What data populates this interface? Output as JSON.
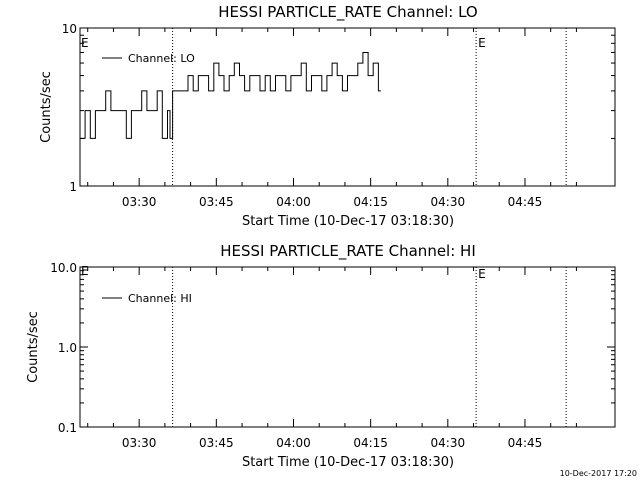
{
  "chart_data": [
    {
      "type": "line",
      "title": "HESSI PARTICLE_RATE Channel: LO",
      "xlabel": "Start Time (10-Dec-17 03:18:30)",
      "ylabel": "Counts/sec",
      "y_scale": "log",
      "ylim": [
        1,
        10
      ],
      "xlim": [
        "03:18:30",
        "05:02:30"
      ],
      "x_tick_labels": [
        "03:30",
        "03:45",
        "04:00",
        "04:15",
        "04:30",
        "04:45"
      ],
      "y_tick_labels": [
        "1",
        "10"
      ],
      "grid": false,
      "legend_position": "top-left",
      "event_markers": [
        {
          "time": "03:36:30",
          "label": ""
        },
        {
          "time": "04:35:30",
          "label": "E"
        },
        {
          "time": "04:53:00",
          "label": ""
        }
      ],
      "start_marker_label": "E",
      "series": [
        {
          "name": "Channel: LO",
          "x": [
            "03:18:30",
            "03:19:30",
            "03:20:30",
            "03:21:30",
            "03:22:30",
            "03:23:30",
            "03:24:30",
            "03:25:30",
            "03:26:30",
            "03:27:30",
            "03:28:30",
            "03:29:30",
            "03:30:30",
            "03:31:30",
            "03:32:30",
            "03:33:30",
            "03:34:30",
            "03:35:30",
            "03:36:00",
            "03:36:30",
            "03:37:30",
            "03:38:30",
            "03:39:30",
            "03:40:30",
            "03:41:30",
            "03:42:30",
            "03:43:30",
            "03:44:30",
            "03:45:30",
            "03:46:30",
            "03:47:30",
            "03:48:30",
            "03:49:30",
            "03:50:30",
            "03:51:30",
            "03:52:30",
            "03:53:30",
            "03:54:30",
            "03:55:30",
            "03:56:30",
            "03:57:30",
            "03:58:30",
            "03:59:30",
            "04:00:30",
            "04:01:30",
            "04:02:30",
            "04:03:30",
            "04:04:30",
            "04:05:30",
            "04:06:30",
            "04:07:30",
            "04:08:30",
            "04:09:30",
            "04:10:30",
            "04:11:30",
            "04:12:30",
            "04:13:30",
            "04:14:30",
            "04:15:30",
            "04:16:30"
          ],
          "values": [
            2,
            3,
            2,
            3,
            3,
            4,
            3,
            3,
            3,
            2,
            3,
            3,
            4,
            3,
            3,
            4,
            2,
            3,
            2,
            4,
            4,
            4,
            5,
            4,
            5,
            5,
            4,
            6,
            5,
            4,
            5,
            6,
            5,
            4,
            5,
            5,
            4,
            5,
            4,
            5,
            5,
            4,
            5,
            5,
            6,
            4,
            5,
            5,
            4,
            5,
            6,
            5,
            4,
            5,
            5,
            6,
            7,
            5,
            6,
            4
          ]
        }
      ]
    },
    {
      "type": "line",
      "title": "HESSI PARTICLE_RATE Channel: HI",
      "xlabel": "Start Time (10-Dec-17 03:18:30)",
      "ylabel": "Counts/sec",
      "y_scale": "log",
      "ylim": [
        0.1,
        10.0
      ],
      "xlim": [
        "03:18:30",
        "05:02:30"
      ],
      "x_tick_labels": [
        "03:30",
        "03:45",
        "04:00",
        "04:15",
        "04:30",
        "04:45"
      ],
      "y_tick_labels": [
        "0.1",
        "1.0",
        "10.0"
      ],
      "grid": false,
      "legend_position": "top-left",
      "event_markers": [
        {
          "time": "03:36:30",
          "label": ""
        },
        {
          "time": "04:35:30",
          "label": "E"
        },
        {
          "time": "04:53:00",
          "label": ""
        }
      ],
      "start_marker_label": "E",
      "series": [
        {
          "name": "Channel: HI",
          "x": [],
          "values": []
        }
      ]
    }
  ],
  "footer": {
    "timestamp": "10-Dec-2017 17:20"
  }
}
